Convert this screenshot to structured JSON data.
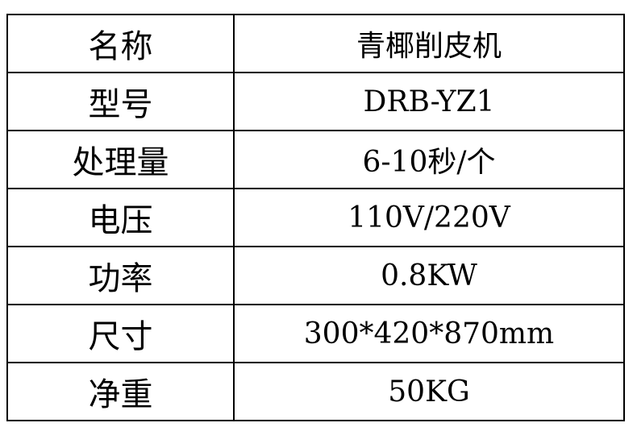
{
  "rows": [
    {
      "label": "名称",
      "value": "青椰削皮机"
    },
    {
      "label": "型号",
      "value": "DRB-YZ1"
    },
    {
      "label": "处理量",
      "value": "6-10秒/个"
    },
    {
      "label": "电压",
      "value": "110V/220V"
    },
    {
      "label": "功率",
      "value": "0.8KW"
    },
    {
      "label": "尺寸",
      "value": "300*420*870mm"
    },
    {
      "label": "净重",
      "value": "50KG"
    }
  ]
}
